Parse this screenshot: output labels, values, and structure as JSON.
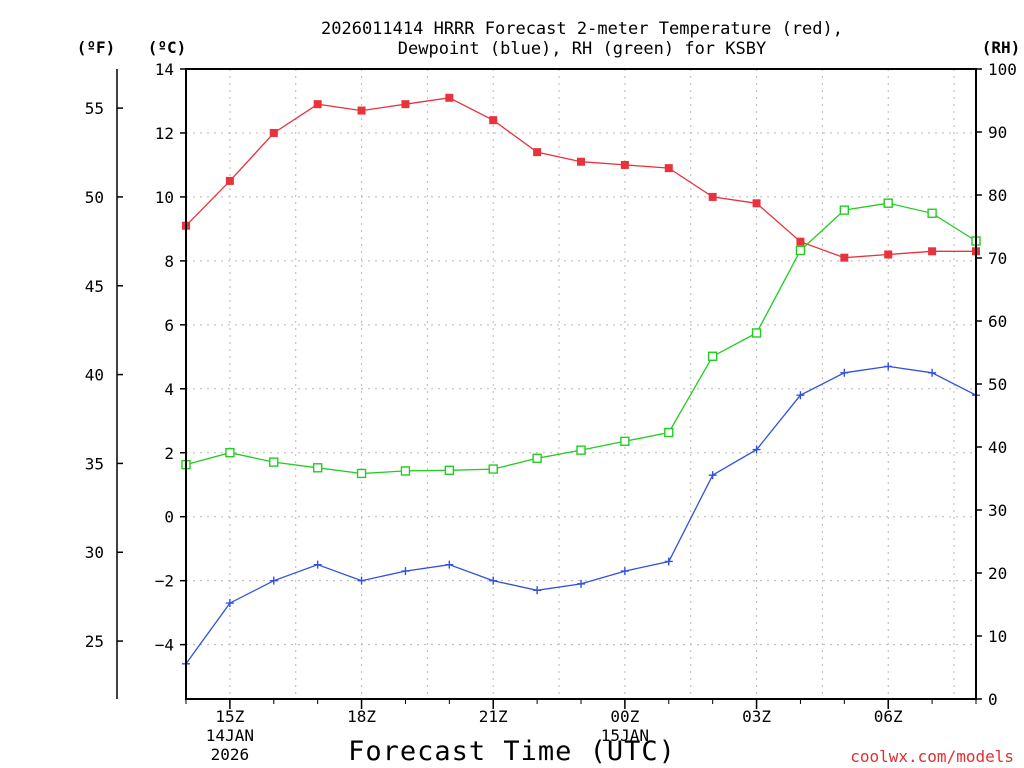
{
  "chart_data": {
    "type": "line",
    "title_line1": "2026011414 HRRR Forecast 2-meter Temperature (red),",
    "title_line2": "Dewpoint (blue), RH (green) for KSBY",
    "left_unit_f": "(ºF)",
    "left_unit_c": "(ºC)",
    "right_unit": "(RH)",
    "xlabel": "Forecast Time (UTC)",
    "credit": "coolwx.com/models",
    "x_hours": [
      14,
      15,
      16,
      17,
      18,
      19,
      20,
      21,
      22,
      23,
      24,
      25,
      26,
      27,
      28,
      29,
      30,
      31,
      32
    ],
    "xlim": [
      14,
      32
    ],
    "x_ticks": [
      {
        "x": 15,
        "label": "15Z",
        "sub1": "14JAN",
        "sub2": "2026"
      },
      {
        "x": 18,
        "label": "18Z",
        "sub1": "",
        "sub2": ""
      },
      {
        "x": 21,
        "label": "21Z",
        "sub1": "",
        "sub2": ""
      },
      {
        "x": 24,
        "label": "00Z",
        "sub1": "15JAN",
        "sub2": ""
      },
      {
        "x": 27,
        "label": "03Z",
        "sub1": "",
        "sub2": ""
      },
      {
        "x": 30,
        "label": "06Z",
        "sub1": "",
        "sub2": ""
      }
    ],
    "celsius_axis": {
      "range": [
        -5.7,
        14
      ],
      "ticks": [
        14,
        12,
        10,
        8,
        6,
        4,
        2,
        0,
        -2,
        -4
      ],
      "labels": [
        "14",
        "12",
        "10",
        "8",
        "6",
        "4",
        "2",
        "0",
        "−2",
        "−4"
      ]
    },
    "fahrenheit_axis": {
      "ticks": [
        55,
        50,
        45,
        40,
        35,
        30,
        25
      ],
      "labels": [
        "55",
        "50",
        "45",
        "40",
        "35",
        "30",
        "25"
      ]
    },
    "rh_axis": {
      "range": [
        0,
        100
      ],
      "ticks": [
        100,
        90,
        80,
        70,
        60,
        50,
        40,
        30,
        20,
        10,
        0
      ],
      "labels": [
        "100",
        "90",
        "80",
        "70",
        "60",
        "50",
        "40",
        "30",
        "20",
        "10",
        "0"
      ]
    },
    "series": [
      {
        "name": "Temperature",
        "axis": "celsius",
        "color": "#e8323c",
        "marker": "filled-square",
        "values": [
          9.1,
          10.5,
          12.0,
          12.9,
          12.7,
          12.9,
          13.1,
          12.4,
          11.4,
          11.1,
          11.0,
          10.9,
          10.0,
          9.8,
          8.6,
          8.1,
          8.2,
          8.3,
          8.3
        ]
      },
      {
        "name": "Dewpoint",
        "axis": "celsius",
        "color": "#3050e0",
        "marker": "plus",
        "values": [
          -4.6,
          -2.7,
          -2.0,
          -1.5,
          -2.0,
          -1.7,
          -1.5,
          -2.0,
          -2.3,
          -2.1,
          -1.7,
          -1.4,
          1.3,
          2.1,
          3.8,
          4.5,
          4.7,
          4.5,
          3.8
        ]
      },
      {
        "name": "RH",
        "axis": "rh",
        "color": "#22cc22",
        "marker": "open-square",
        "values": [
          37.2,
          39.1,
          37.6,
          36.7,
          35.8,
          36.2,
          36.3,
          36.5,
          38.2,
          39.5,
          40.9,
          42.3,
          54.4,
          58.1,
          71.2,
          77.6,
          78.7,
          77.1,
          72.7
        ]
      }
    ]
  }
}
